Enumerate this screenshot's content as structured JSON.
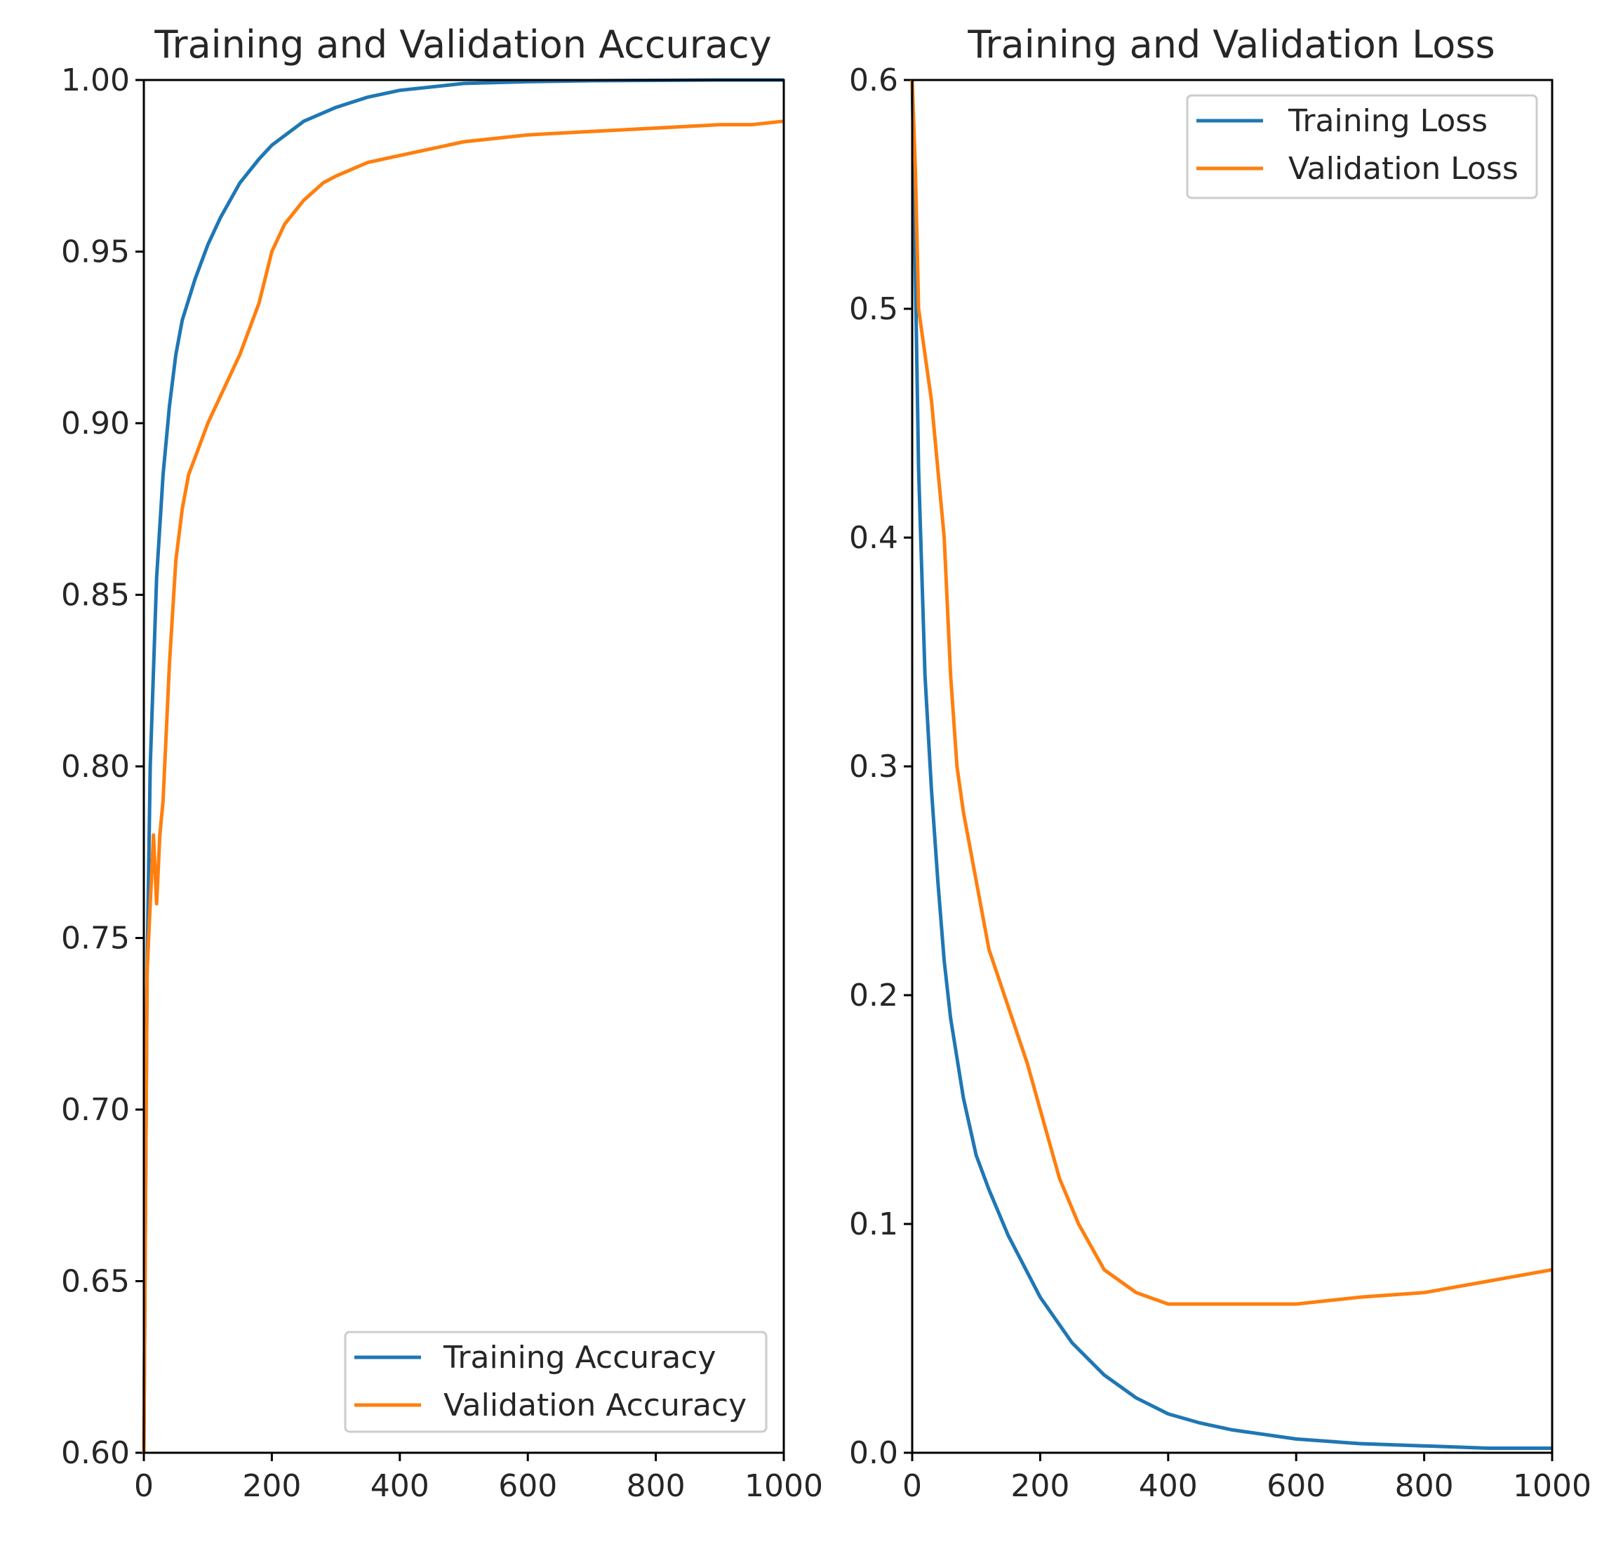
{
  "chart_data": [
    {
      "type": "line",
      "title": "Training and Validation Accuracy",
      "xlabel": "",
      "ylabel": "",
      "xlim": [
        0,
        1000
      ],
      "ylim": [
        0.6,
        1.0
      ],
      "x_ticks": [
        "0",
        "200",
        "400",
        "600",
        "800",
        "1000"
      ],
      "y_ticks": [
        "0.60",
        "0.65",
        "0.70",
        "0.75",
        "0.80",
        "0.85",
        "0.90",
        "0.95",
        "1.00"
      ],
      "legend_position": "lower-right",
      "legend": [
        "Training Accuracy",
        "Validation Accuracy"
      ],
      "series": [
        {
          "name": "Training Accuracy",
          "color": "#1f77b4",
          "x": [
            0,
            5,
            10,
            20,
            30,
            40,
            50,
            60,
            80,
            100,
            120,
            150,
            180,
            200,
            250,
            300,
            350,
            400,
            500,
            600,
            700,
            800,
            900,
            1000
          ],
          "values": [
            0.6,
            0.74,
            0.8,
            0.855,
            0.885,
            0.905,
            0.92,
            0.93,
            0.942,
            0.952,
            0.96,
            0.97,
            0.977,
            0.981,
            0.988,
            0.992,
            0.995,
            0.997,
            0.999,
            0.9995,
            0.9998,
            0.9999,
            1.0,
            1.0
          ]
        },
        {
          "name": "Validation Accuracy",
          "color": "#ff7f0e",
          "x": [
            0,
            5,
            10,
            15,
            20,
            25,
            30,
            40,
            50,
            60,
            70,
            80,
            100,
            120,
            150,
            180,
            200,
            220,
            250,
            280,
            300,
            350,
            400,
            450,
            500,
            550,
            600,
            700,
            800,
            900,
            950,
            1000
          ],
          "values": [
            0.6,
            0.74,
            0.76,
            0.78,
            0.76,
            0.78,
            0.79,
            0.83,
            0.86,
            0.875,
            0.885,
            0.89,
            0.9,
            0.908,
            0.92,
            0.935,
            0.95,
            0.958,
            0.965,
            0.97,
            0.972,
            0.976,
            0.978,
            0.98,
            0.982,
            0.983,
            0.984,
            0.985,
            0.986,
            0.987,
            0.987,
            0.988
          ]
        }
      ]
    },
    {
      "type": "line",
      "title": "Training and Validation Loss",
      "xlabel": "",
      "ylabel": "",
      "xlim": [
        0,
        1000
      ],
      "ylim": [
        0.0,
        0.6
      ],
      "x_ticks": [
        "0",
        "200",
        "400",
        "600",
        "800",
        "1000"
      ],
      "y_ticks": [
        "0.0",
        "0.1",
        "0.2",
        "0.3",
        "0.4",
        "0.5",
        "0.6"
      ],
      "legend_position": "upper-right",
      "legend": [
        "Training Loss",
        "Validation Loss"
      ],
      "series": [
        {
          "name": "Training Loss",
          "color": "#1f77b4",
          "x": [
            0,
            10,
            20,
            30,
            40,
            50,
            60,
            80,
            100,
            120,
            150,
            200,
            250,
            300,
            350,
            400,
            450,
            500,
            600,
            700,
            800,
            900,
            1000
          ],
          "values": [
            0.6,
            0.43,
            0.34,
            0.29,
            0.25,
            0.215,
            0.19,
            0.155,
            0.13,
            0.115,
            0.095,
            0.068,
            0.048,
            0.034,
            0.024,
            0.017,
            0.013,
            0.01,
            0.006,
            0.004,
            0.003,
            0.002,
            0.002
          ]
        },
        {
          "name": "Validation Loss",
          "color": "#ff7f0e",
          "x": [
            0,
            5,
            10,
            20,
            30,
            40,
            50,
            60,
            70,
            80,
            100,
            120,
            150,
            180,
            200,
            230,
            260,
            300,
            350,
            400,
            500,
            600,
            700,
            800,
            900,
            1000
          ],
          "values": [
            0.6,
            0.56,
            0.5,
            0.48,
            0.46,
            0.43,
            0.4,
            0.34,
            0.3,
            0.28,
            0.25,
            0.22,
            0.195,
            0.17,
            0.15,
            0.12,
            0.1,
            0.08,
            0.07,
            0.065,
            0.065,
            0.065,
            0.068,
            0.07,
            0.075,
            0.08
          ]
        }
      ]
    }
  ]
}
